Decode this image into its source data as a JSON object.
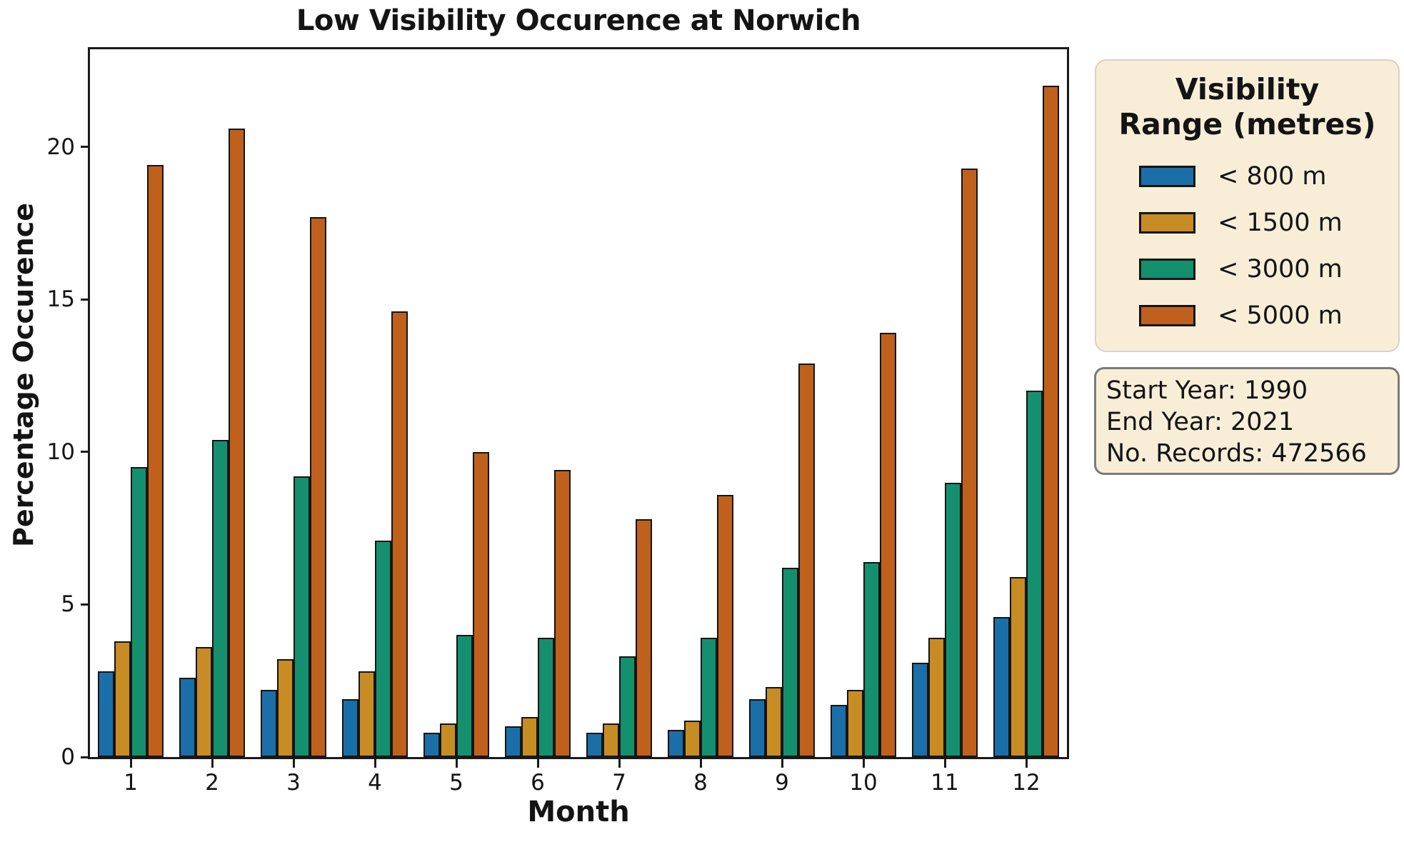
{
  "chart_data": {
    "type": "bar",
    "title": "Low Visibility Occurence at Norwich",
    "xlabel": "Month",
    "ylabel": "Percentage Occurence",
    "categories": [
      "1",
      "2",
      "3",
      "4",
      "5",
      "6",
      "7",
      "8",
      "9",
      "10",
      "11",
      "12"
    ],
    "ylim": [
      0,
      23.2
    ],
    "yticks": [
      0,
      5,
      10,
      15,
      20
    ],
    "grid": false,
    "legend_position": "outside-right",
    "bar_edge_color": "#141414",
    "series": [
      {
        "name": "< 800 m",
        "color": "#1b6fa8",
        "values": [
          2.8,
          2.6,
          2.2,
          1.9,
          0.8,
          1.0,
          0.8,
          0.9,
          1.9,
          1.7,
          3.1,
          4.6
        ]
      },
      {
        "name": "< 1500 m",
        "color": "#c78c24",
        "values": [
          3.8,
          3.6,
          3.2,
          2.8,
          1.1,
          1.3,
          1.1,
          1.2,
          2.3,
          2.2,
          3.9,
          5.9
        ]
      },
      {
        "name": "< 3000 m",
        "color": "#15906e",
        "values": [
          9.5,
          10.4,
          9.2,
          7.1,
          4.0,
          3.9,
          3.3,
          3.9,
          6.2,
          6.4,
          9.0,
          12.0
        ]
      },
      {
        "name": "< 5000 m",
        "color": "#c0601d",
        "values": [
          19.4,
          20.6,
          17.7,
          14.6,
          10.0,
          9.4,
          7.8,
          8.6,
          12.9,
          13.9,
          19.3,
          22.0
        ]
      }
    ]
  },
  "legend": {
    "title_line1": "Visibility",
    "title_line2": "Range (metres)",
    "bg_color": "#f8eed8"
  },
  "info_box": {
    "bg_color": "#f8eed8",
    "lines": [
      "Start Year: 1990",
      "End Year: 2021",
      "No. Records: 472566"
    ]
  }
}
